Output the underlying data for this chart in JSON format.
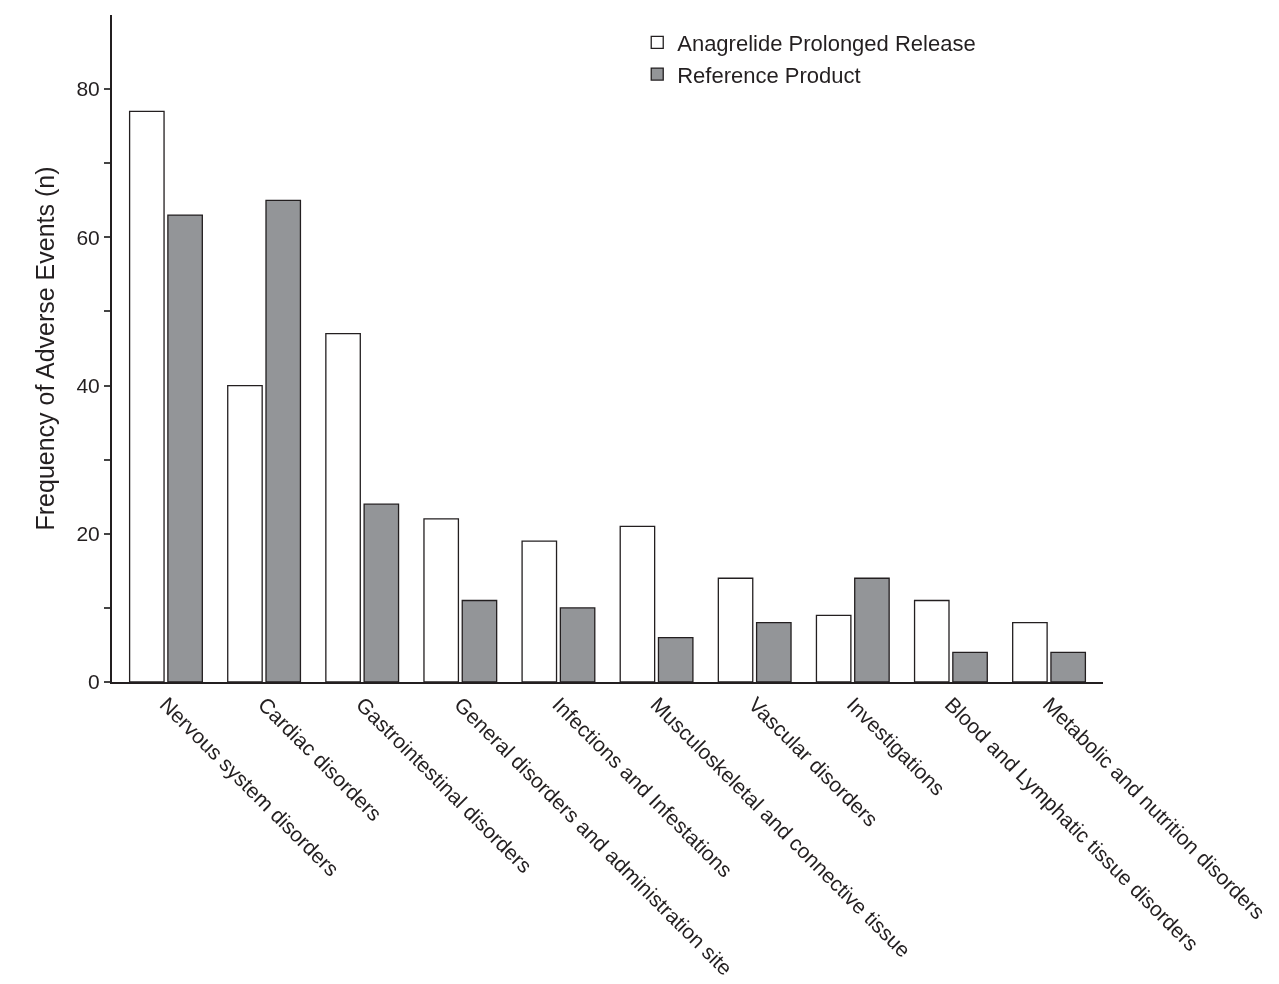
{
  "chart_data": {
    "type": "bar",
    "ylabel": "Frequency of Adverse Events (n)",
    "categories": [
      "Nervous system disorders",
      "Cardiac disorders",
      "Gastrointestinal disorders",
      "General disorders and administration site",
      "Infections and Infestations",
      "Musculoskeletal and connective tissue",
      "Vascular disorders",
      "Investigations",
      "Blood and Lymphatic tissue disorders",
      "Metabolic and nutrition disorders"
    ],
    "series": [
      {
        "name": "Anagrelide Prolonged Release",
        "color": "#ffffff",
        "values": [
          77,
          40,
          47,
          22,
          19,
          21,
          14,
          9,
          11,
          8
        ]
      },
      {
        "name": "Reference Product",
        "color": "#939598",
        "values": [
          63,
          65,
          24,
          11,
          10,
          6,
          8,
          14,
          4,
          4
        ]
      }
    ],
    "ylim": [
      0,
      90
    ],
    "yticks": [
      0,
      {
        "value": 10,
        "label": null
      },
      20,
      {
        "value": 30,
        "label": null
      },
      40,
      {
        "value": 50,
        "label": null
      },
      60,
      {
        "value": 70,
        "label": null
      },
      80
    ],
    "legend": "top right"
  }
}
